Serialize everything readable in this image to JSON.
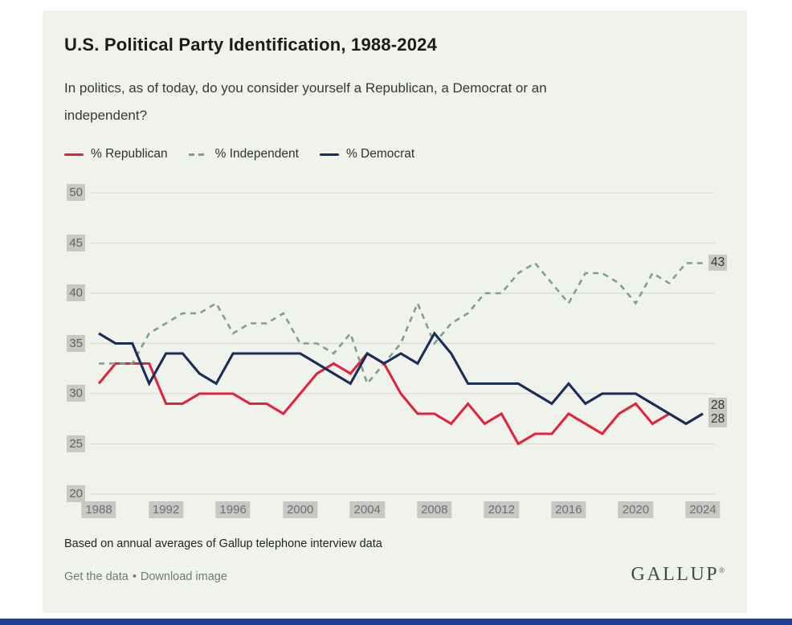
{
  "card": {
    "title": "U.S. Political Party Identification, 1988-2024",
    "subtitle_line1": "In politics, as of today, do you consider yourself a Republican, a Democrat or an",
    "subtitle_line2": "independent?",
    "source_note": "Based on annual averages of Gallup telephone interview data",
    "links": {
      "get_data": "Get the data",
      "bullet": "•",
      "download": "Download image"
    },
    "logo_text": "GALLUP",
    "logo_mark": "®"
  },
  "colors": {
    "republican": "#e02440",
    "independent": "#7f9e90",
    "democrat": "#1a2c59",
    "card_bg": "#eff3ec",
    "grid": "#d9dcd4",
    "tick_bg": "#c6c8c3",
    "bottom_bar": "#1f3e8c"
  },
  "chart_data": {
    "type": "line",
    "title": "U.S. Political Party Identification, 1988-2024",
    "x": [
      1988,
      1989,
      1990,
      1991,
      1992,
      1993,
      1994,
      1995,
      1996,
      1997,
      1998,
      1999,
      2000,
      2001,
      2002,
      2003,
      2004,
      2005,
      2006,
      2007,
      2008,
      2009,
      2010,
      2011,
      2012,
      2013,
      2014,
      2015,
      2016,
      2017,
      2018,
      2019,
      2020,
      2021,
      2022,
      2023,
      2024
    ],
    "series": [
      {
        "name": "% Republican",
        "color_key": "republican",
        "style": "solid",
        "values": [
          31,
          33,
          33,
          33,
          29,
          29,
          30,
          30,
          30,
          29,
          29,
          28,
          30,
          32,
          33,
          32,
          34,
          33,
          30,
          28,
          28,
          27,
          29,
          27,
          28,
          25,
          26,
          26,
          28,
          27,
          26,
          28,
          29,
          27,
          28,
          27,
          28
        ]
      },
      {
        "name": "% Independent",
        "color_key": "independent",
        "style": "dashed",
        "values": [
          33,
          33,
          33,
          36,
          37,
          38,
          38,
          39,
          36,
          37,
          37,
          38,
          35,
          35,
          34,
          36,
          31,
          33,
          35,
          39,
          35,
          37,
          38,
          40,
          40,
          42,
          43,
          41,
          39,
          42,
          42,
          41,
          39,
          42,
          41,
          43,
          43
        ]
      },
      {
        "name": "% Democrat",
        "color_key": "democrat",
        "style": "solid",
        "values": [
          36,
          35,
          35,
          31,
          34,
          34,
          32,
          31,
          34,
          34,
          34,
          34,
          34,
          33,
          32,
          31,
          34,
          33,
          34,
          33,
          36,
          34,
          31,
          31,
          31,
          31,
          30,
          29,
          31,
          29,
          30,
          30,
          30,
          29,
          28,
          27,
          28
        ]
      }
    ],
    "ylim": [
      20,
      50
    ],
    "yticks": [
      50,
      45,
      40,
      35,
      30,
      25,
      20
    ],
    "xticks": [
      1988,
      1992,
      1996,
      2000,
      2004,
      2008,
      2012,
      2016,
      2020,
      2024
    ],
    "end_labels": [
      {
        "text": "43",
        "value": 43,
        "shift": 0
      },
      {
        "text": "28",
        "value": 28,
        "shift": -9
      },
      {
        "text": "28",
        "value": 28,
        "shift": 8
      }
    ],
    "grid": "horizontal",
    "legend_position": "top-left"
  }
}
